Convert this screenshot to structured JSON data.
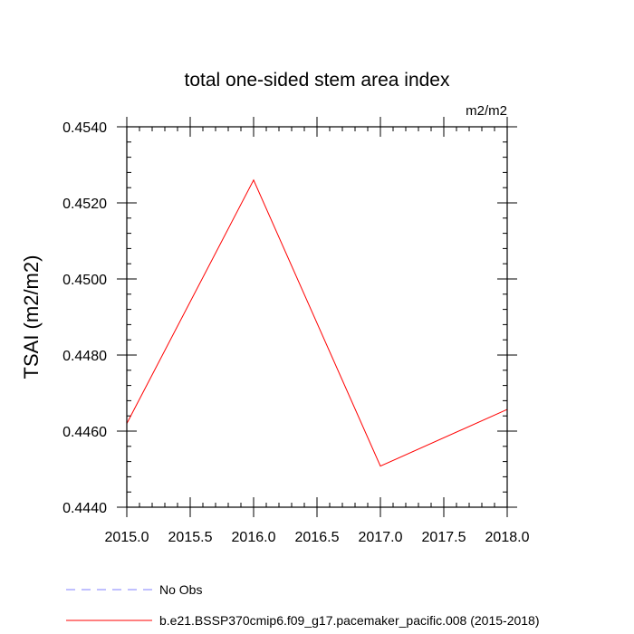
{
  "chart_data": {
    "type": "line",
    "title": "total one-sided stem area index",
    "units_label": "m2/m2",
    "ylabel": "TSAI  (m2/m2)",
    "xlabel": "",
    "xlim": [
      2015.0,
      2018.0
    ],
    "ylim": [
      0.444,
      0.454
    ],
    "x_ticks": [
      2015.0,
      2015.5,
      2016.0,
      2016.5,
      2017.0,
      2017.5,
      2018.0
    ],
    "x_tick_labels": [
      "2015.0",
      "2015.5",
      "2016.0",
      "2016.5",
      "2017.0",
      "2017.5",
      "2018.0"
    ],
    "y_ticks": [
      0.444,
      0.446,
      0.448,
      0.45,
      0.452,
      0.454
    ],
    "y_tick_labels": [
      "0.4440",
      "0.4460",
      "0.4480",
      "0.4500",
      "0.4520",
      "0.4540"
    ],
    "grid": false,
    "legend_position": "bottom",
    "series": [
      {
        "name": "No Obs",
        "color": "#8080ff",
        "dash": "dashed",
        "x": [],
        "y": []
      },
      {
        "name": "b.e21.BSSP370cmip6.f09_g17.pacemaker_pacific.008 (2015-2018)",
        "color": "#ff0000",
        "dash": "solid",
        "x": [
          2015.0,
          2016.0,
          2017.0,
          2018.0
        ],
        "y": [
          0.4462,
          0.4526,
          0.44508,
          0.44657
        ]
      }
    ]
  }
}
